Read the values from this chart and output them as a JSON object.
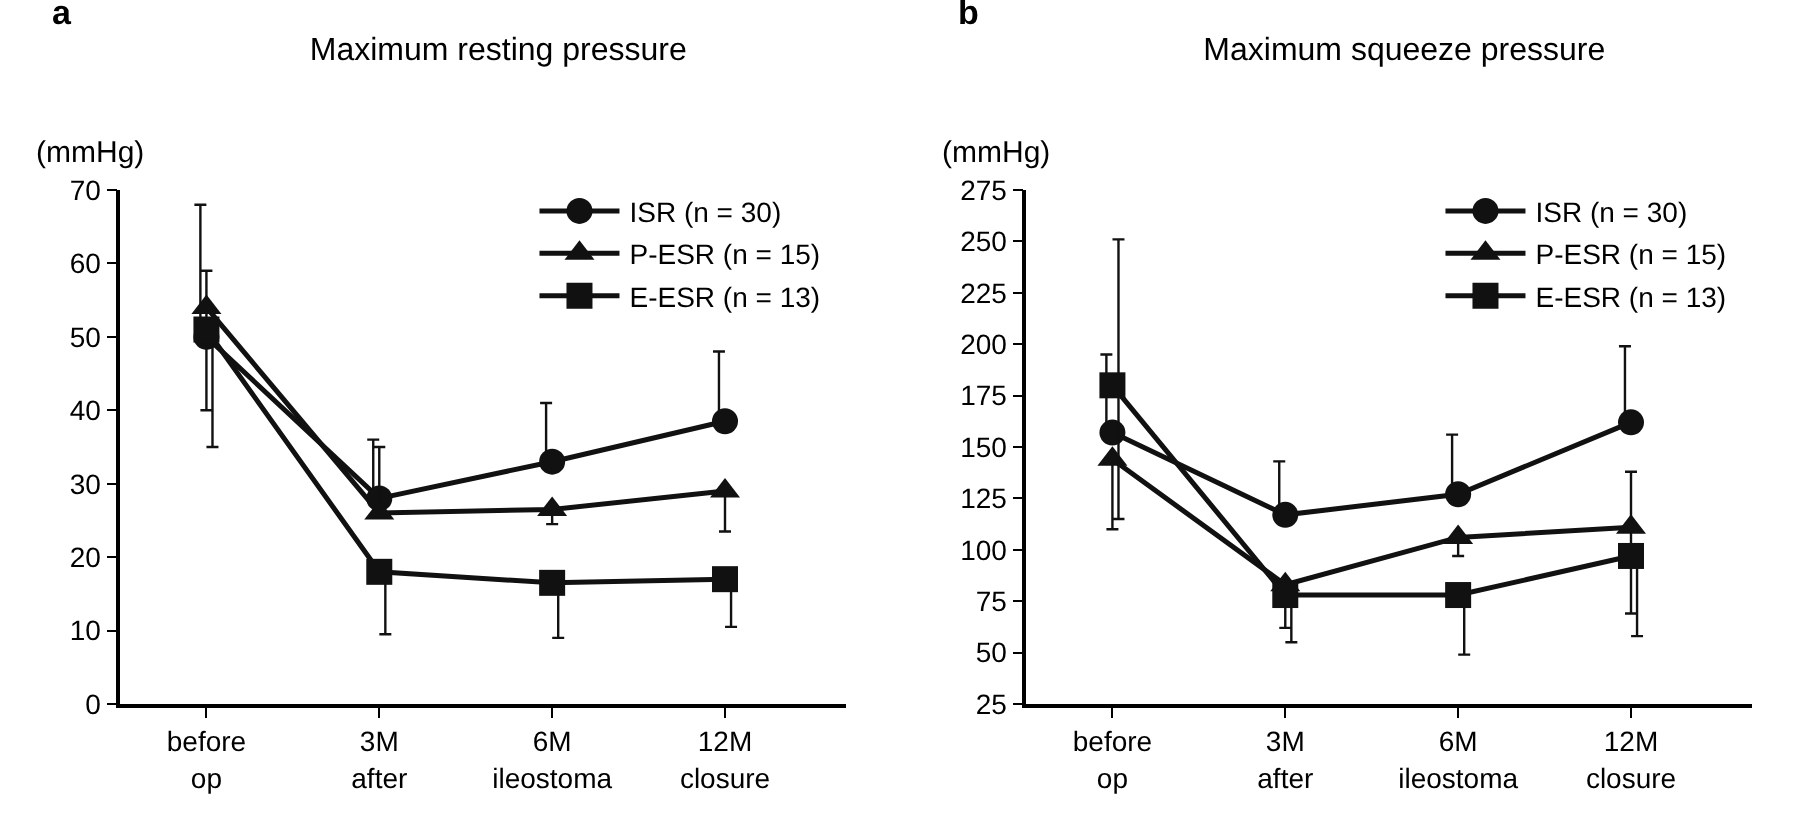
{
  "chart_data": [
    {
      "type": "line",
      "title": "Maximum resting pressure",
      "ylabel": "(mmHg)",
      "annotations": [
        "a"
      ],
      "categories": [
        "before\nop",
        "3M\nafter",
        "6M\nileostoma",
        "12M\nclosure"
      ],
      "series": [
        {
          "name": "ISR (n = 30)",
          "color": "#111111",
          "marker": "circle",
          "values": [
            50,
            28,
            33,
            38.5
          ],
          "errors": [
            [
              50,
              68
            ],
            [
              28,
              36
            ],
            [
              33,
              41
            ],
            [
              38.5,
              48
            ]
          ]
        },
        {
          "name": "P-ESR (n = 15)",
          "color": "#111111",
          "marker": "triangle",
          "values": [
            54,
            26,
            26.5,
            29
          ],
          "errors": [
            [
              40,
              59
            ],
            [
              26,
              35
            ],
            [
              24.5,
              26.5
            ],
            [
              23.5,
              29
            ]
          ]
        },
        {
          "name": "E-ESR (n = 13)",
          "color": "#111111",
          "marker": "square",
          "values": [
            51,
            18,
            16.5,
            17
          ],
          "errors": [
            [
              35,
              51
            ],
            [
              9.5,
              18
            ],
            [
              9,
              16.5
            ],
            [
              10.5,
              17
            ]
          ]
        }
      ],
      "ylim": [
        0,
        70
      ],
      "yticks": [
        0,
        10,
        20,
        30,
        40,
        50,
        60,
        70
      ],
      "grid": false,
      "legend": "top right",
      "line_style": "solid"
    },
    {
      "type": "line",
      "title": "Maximum squeeze pressure",
      "ylabel": "(mmHg)",
      "annotations": [
        "b"
      ],
      "categories": [
        "before\nop",
        "3M\nafter",
        "6M\nileostoma",
        "12M\nclosure"
      ],
      "series": [
        {
          "name": "ISR (n = 30)",
          "color": "#111111",
          "marker": "circle",
          "values": [
            157,
            117,
            127,
            162
          ],
          "errors": [
            [
              157,
              195
            ],
            [
              117,
              143
            ],
            [
              127,
              156
            ],
            [
              162,
              199
            ]
          ]
        },
        {
          "name": "P-ESR (n = 15)",
          "color": "#111111",
          "marker": "triangle",
          "values": [
            144,
            83,
            106,
            111
          ],
          "errors": [
            [
              110,
              144
            ],
            [
              62,
              83
            ],
            [
              97,
              106
            ],
            [
              69,
              138
            ]
          ]
        },
        {
          "name": "E-ESR (n = 13)",
          "color": "#111111",
          "marker": "square",
          "values": [
            180,
            78,
            78,
            97
          ],
          "errors": [
            [
              115,
              251
            ],
            [
              55,
              78
            ],
            [
              49,
              78
            ],
            [
              58,
              97
            ]
          ]
        }
      ],
      "ylim": [
        25,
        275
      ],
      "yticks": [
        25,
        50,
        75,
        100,
        125,
        150,
        175,
        200,
        225,
        250,
        275
      ],
      "grid": false,
      "legend": "top right",
      "line_style": "solid"
    }
  ]
}
